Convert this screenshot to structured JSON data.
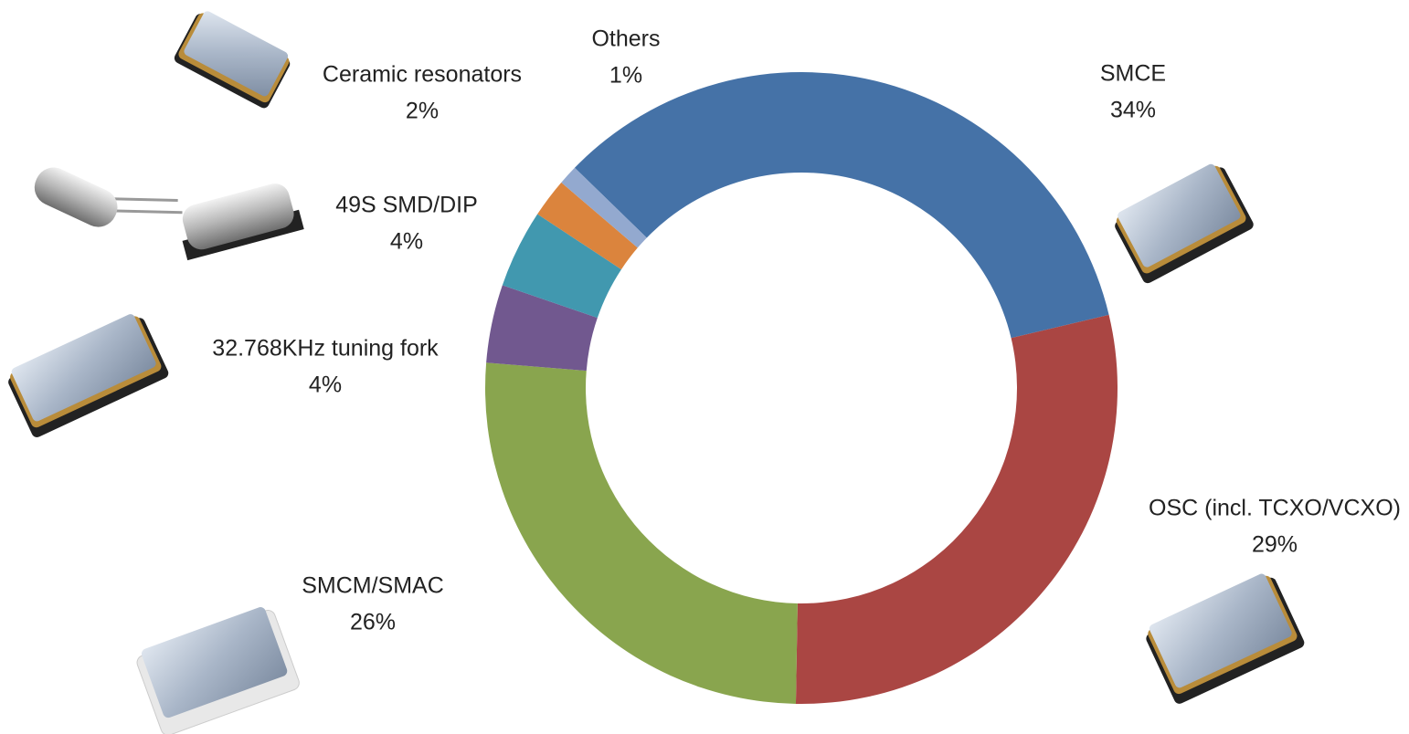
{
  "chart_data": {
    "type": "donut",
    "categories": [
      "SMCE",
      "OSC (incl. TCXO/VCXO)",
      "SMCM/SMAC",
      "32.768KHz tuning fork",
      "49S SMD/DIP",
      "Ceramic resonators",
      "Others"
    ],
    "values": [
      34,
      29,
      26,
      4,
      4,
      2,
      1
    ],
    "value_labels": [
      "34%",
      "29%",
      "26%",
      "4%",
      "4%",
      "2%",
      "1%"
    ],
    "colors": [
      "#4572a7",
      "#aa4643",
      "#89a54e",
      "#71588f",
      "#4198af",
      "#db843d",
      "#93a9cf"
    ]
  }
}
